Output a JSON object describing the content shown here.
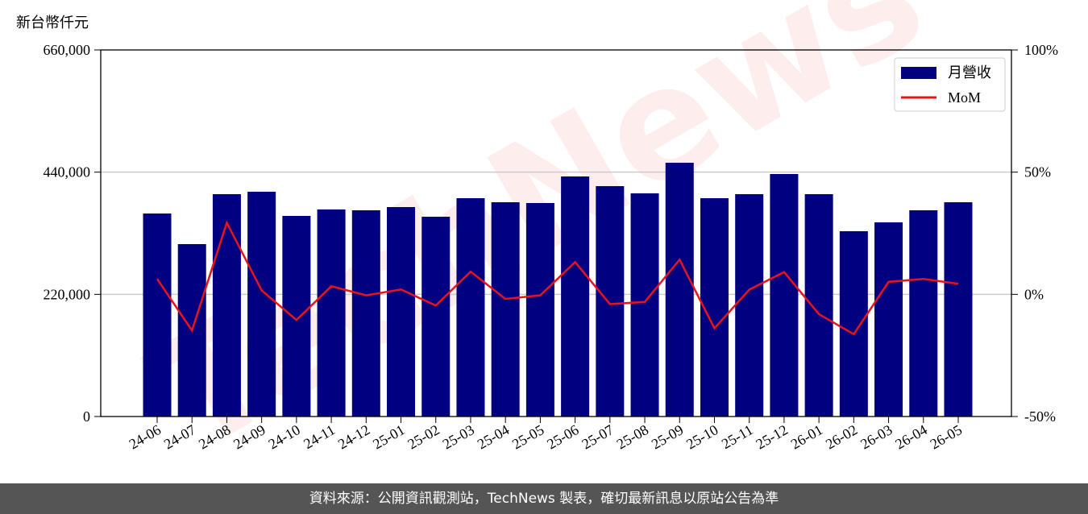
{
  "chart_data": {
    "type": "bar",
    "y_label": "新台幣仟元",
    "watermark": "TechNews",
    "categories": [
      "24-06",
      "24-07",
      "24-08",
      "24-09",
      "24-10",
      "24-11",
      "24-12",
      "25-01",
      "25-02",
      "25-03",
      "25-04",
      "25-05",
      "25-06",
      "25-07",
      "25-08",
      "25-09",
      "25-10",
      "25-11",
      "25-12",
      "26-01",
      "26-02",
      "26-03",
      "26-04",
      "26-05"
    ],
    "series": [
      {
        "name": "月營收",
        "type": "bar",
        "color": "#000080",
        "values": [
          365500,
          310400,
          400300,
          404700,
          361200,
          372800,
          371300,
          377100,
          359700,
          393100,
          385800,
          384400,
          432200,
          414800,
          401800,
          456900,
          393100,
          400300,
          436600,
          400300,
          333600,
          349600,
          371300,
          385800
        ]
      },
      {
        "name": "MoM",
        "type": "line",
        "color": "#e8141b",
        "axis": "y2",
        "values": [
          6.3,
          -14.8,
          29.3,
          1.6,
          -10.5,
          3.3,
          -0.4,
          2.0,
          -4.6,
          9.3,
          -1.9,
          -0.4,
          13.2,
          -4.0,
          -3.1,
          14.2,
          -13.9,
          1.9,
          9.1,
          -8.1,
          -16.3,
          5.1,
          6.3,
          4.3
        ]
      }
    ],
    "ylim": [
      0,
      660000
    ],
    "yticks": [
      0,
      {
        "value": 220000,
        "label": "220,000"
      },
      {
        "value": 440000,
        "label": "440,000"
      },
      {
        "value": 660000,
        "label": "660,000"
      }
    ],
    "y2lim": [
      -50,
      100
    ],
    "y2ticks": [
      {
        "value": -50,
        "label": "-50%"
      },
      {
        "value": 0,
        "label": "0%"
      },
      {
        "value": 50,
        "label": "50%"
      },
      {
        "value": 100,
        "label": "100%"
      }
    ],
    "grid": true,
    "legend": "upper right"
  },
  "footer": "資料來源：公開資訊觀測站，TechNews 製表，確切最新訊息以原站公告為準"
}
